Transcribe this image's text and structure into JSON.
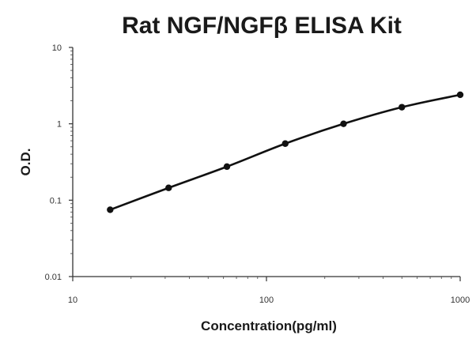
{
  "chart_data": {
    "type": "line",
    "title": "Rat NGF/NGFβ ELISA Kit",
    "xlabel": "Concentration(pg/ml)",
    "ylabel": "O.D.",
    "x_scale": "log",
    "y_scale": "log",
    "xlim": [
      10,
      1000
    ],
    "ylim": [
      0.01,
      10
    ],
    "x_ticks": [
      10,
      100,
      1000
    ],
    "x_tick_labels": [
      "10",
      "100",
      "1000"
    ],
    "y_ticks": [
      0.01,
      0.1,
      1,
      10
    ],
    "y_tick_labels": [
      "0.01",
      "0.1",
      "1",
      "10"
    ],
    "grid": false,
    "legend": "none",
    "series": [
      {
        "x": [
          15.6,
          31.25,
          62.5,
          125,
          250,
          500,
          1000
        ],
        "y": [
          0.075,
          0.145,
          0.275,
          0.55,
          1.0,
          1.65,
          2.4
        ]
      }
    ],
    "colors": {
      "line": "#111111",
      "axis": "#333333",
      "text": "#1a1a1a"
    }
  }
}
